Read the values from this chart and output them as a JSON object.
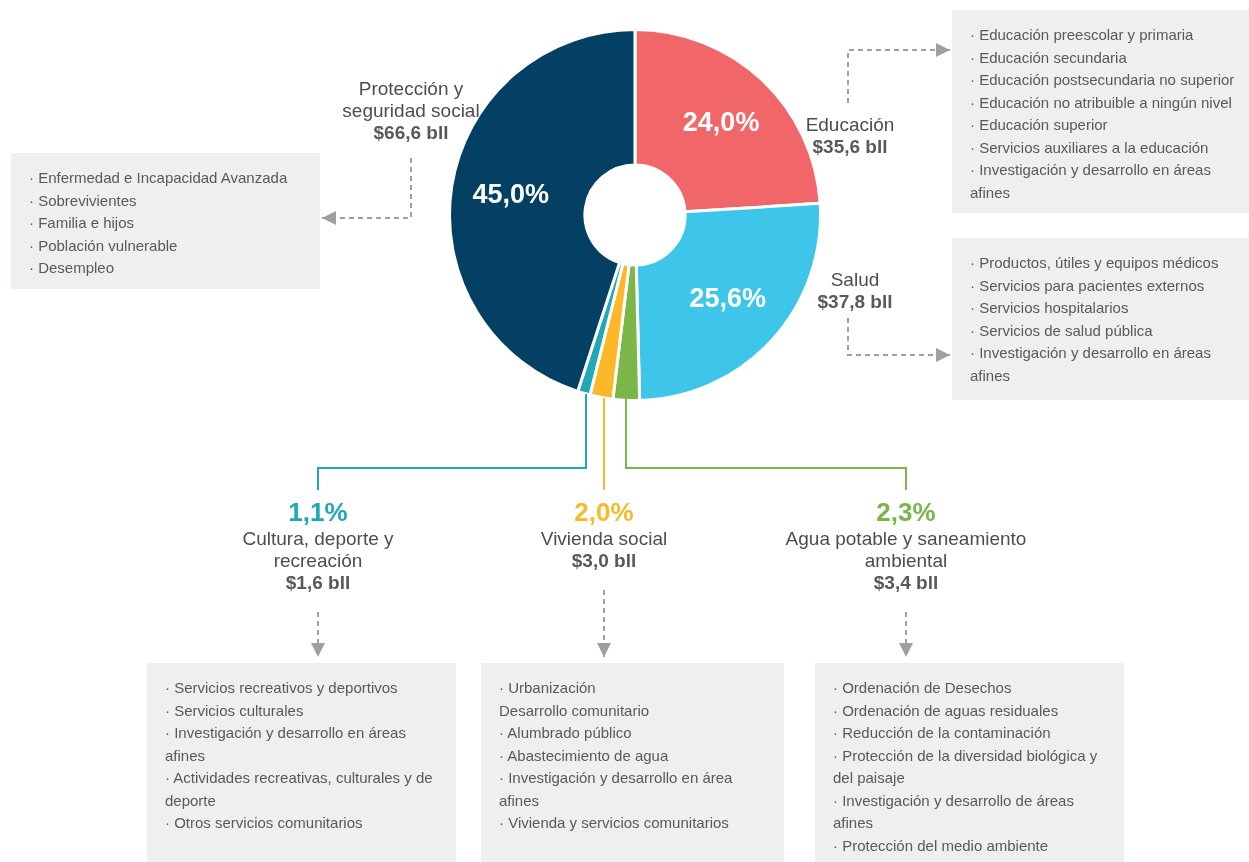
{
  "chart_data": {
    "type": "donut",
    "categories": [
      "Educación",
      "Salud",
      "Agua potable y saneamiento ambiental",
      "Vivienda social",
      "Cultura, deporte y recreación",
      "Protección y seguridad social"
    ],
    "values": [
      24.0,
      25.6,
      2.3,
      2.0,
      1.1,
      45.0
    ],
    "colors": [
      "#f06669",
      "#3ec5ea",
      "#7ab648",
      "#fbb829",
      "#1fa9b5",
      "#034063"
    ],
    "value_labels": [
      "24,0%",
      "25,6%",
      "2,3%",
      "2,0%",
      "1,1%",
      "45,0%"
    ],
    "annotations": [
      "$35,6 bll",
      "$37,8 bll",
      "$3,4 bll",
      "$3,0 bll",
      "$1,6 bll",
      "$66,6 bll",
      "· Educación preescolar y primaria\n· Educación secundaria\n· Educación postsecundaria no superior\n· Educación no atribuible a ningún nivel\n· Educación superior\n· Servicios auxiliares a la educación\n· Investigación y desarrollo en áreas afines",
      "· Productos, útiles y equipos médicos\n· Servicios para pacientes externos\n· Servicios hospitalarios\n· Servicios de salud pública\n· Investigación y desarrollo en áreas afines",
      "· Ordenación de Desechos\n· Ordenación de aguas residuales\n· Reducción de la contaminación\n· Protección de la diversidad biológica y del paisaje\n· Investigación y desarrollo de áreas afines\n· Protección del medio ambiente",
      "· Urbanización\nDesarrollo comunitario\n· Alumbrado público\n· Abastecimiento de agua\n· Investigación y desarrollo en área afines\n· Vivienda y servicios comunitarios",
      "· Servicios recreativos y deportivos\n· Servicios culturales\n· Investigación y desarrollo en áreas afines\n· Actividades recreativas, culturales y de deporte\n· Otros servicios comunitarios",
      "· Enfermedad e Incapacidad Avanzada\n· Sobrevivientes\n· Familia e hijos\n· Población vulnerable\n· Desempleo"
    ]
  }
}
